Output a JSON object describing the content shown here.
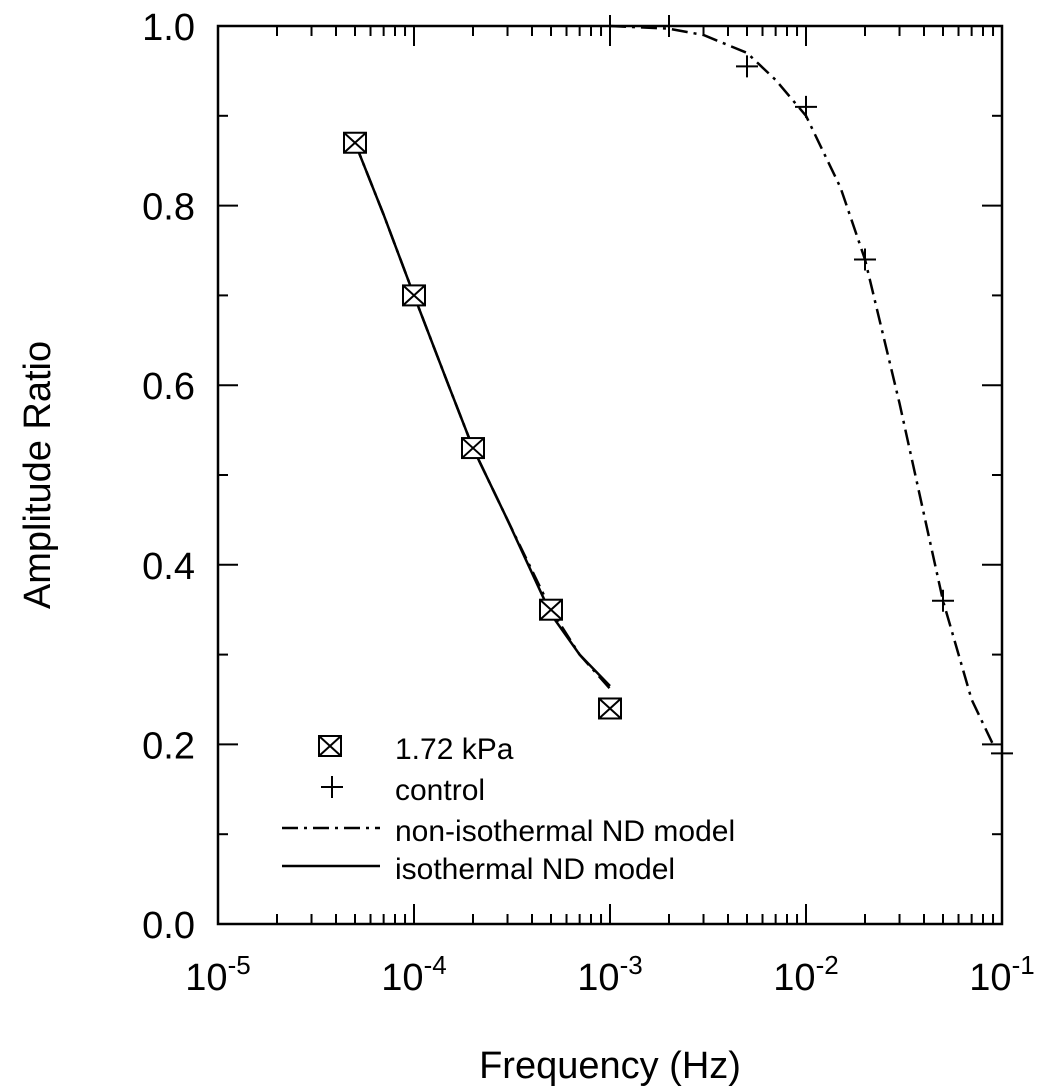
{
  "chart_data": {
    "type": "scatter",
    "xlabel": "Frequency (Hz)",
    "ylabel": "Amplitude Ratio",
    "xscale": "log",
    "xlim": [
      1e-05,
      0.1
    ],
    "ylim": [
      0.0,
      1.0
    ],
    "grid": false,
    "legend_position": "bottom-left",
    "x_ticks": [
      {
        "base": "10",
        "exp": "-5",
        "value": 1e-05
      },
      {
        "base": "10",
        "exp": "-4",
        "value": 0.0001
      },
      {
        "base": "10",
        "exp": "-3",
        "value": 0.001
      },
      {
        "base": "10",
        "exp": "-2",
        "value": 0.01
      },
      {
        "base": "10",
        "exp": "-1",
        "value": 0.1
      }
    ],
    "y_ticks": [
      {
        "label": "0.0",
        "value": 0.0
      },
      {
        "label": "0.2",
        "value": 0.2
      },
      {
        "label": "0.4",
        "value": 0.4
      },
      {
        "label": "0.6",
        "value": 0.6
      },
      {
        "label": "0.8",
        "value": 0.8
      },
      {
        "label": "1.0",
        "value": 1.0
      }
    ],
    "series": [
      {
        "name": "1.72 kPa",
        "kind": "points",
        "marker": "bowtie",
        "x": [
          5e-05,
          0.0001,
          0.0002,
          0.0005,
          0.001
        ],
        "y": [
          0.87,
          0.7,
          0.53,
          0.35,
          0.24
        ]
      },
      {
        "name": "control",
        "kind": "points",
        "marker": "plus",
        "x": [
          0.001,
          0.002,
          0.005,
          0.01,
          0.02,
          0.05,
          0.1
        ],
        "y": [
          1.0,
          1.0,
          0.955,
          0.91,
          0.74,
          0.36,
          0.19
        ]
      },
      {
        "name": "non-isothermal ND model",
        "kind": "line",
        "style": "dash-dot",
        "segments": [
          {
            "x": [
              5e-05,
              7e-05,
              0.0001,
              0.00015,
              0.0002,
              0.0003,
              0.0005,
              0.0007,
              0.001
            ],
            "y": [
              0.87,
              0.79,
              0.7,
              0.6,
              0.53,
              0.45,
              0.35,
              0.3,
              0.262
            ]
          },
          {
            "x": [
              0.001,
              0.002,
              0.003,
              0.005,
              0.007,
              0.01,
              0.015,
              0.02,
              0.03,
              0.05,
              0.07,
              0.09
            ],
            "y": [
              1.0,
              0.997,
              0.99,
              0.97,
              0.94,
              0.9,
              0.82,
              0.74,
              0.58,
              0.36,
              0.25,
              0.2
            ]
          }
        ]
      },
      {
        "name": "isothermal ND model",
        "kind": "line",
        "style": "solid",
        "segments": [
          {
            "x": [
              5e-05,
              7e-05,
              0.0001,
              0.00015,
              0.0002,
              0.0003,
              0.0005,
              0.0007,
              0.001
            ],
            "y": [
              0.87,
              0.79,
              0.7,
              0.6,
              0.53,
              0.45,
              0.345,
              0.3,
              0.265
            ]
          }
        ]
      }
    ]
  }
}
